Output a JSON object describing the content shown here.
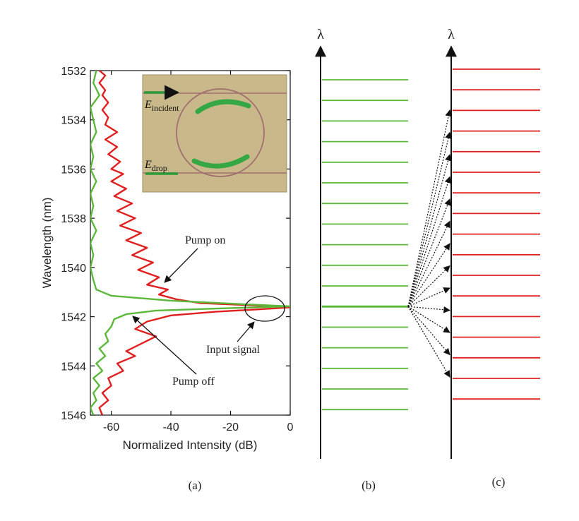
{
  "chart_data": [
    {
      "type": "line",
      "panel_label": "(a)",
      "xlabel": "Normalized Intensity (dB)",
      "ylabel": "Wavelength (nm)",
      "xlim": [
        -67,
        0
      ],
      "ylim": [
        1532,
        1546
      ],
      "x_ticks": [
        -60,
        -40,
        -20,
        0
      ],
      "y_ticks": [
        1532,
        1534,
        1536,
        1538,
        1540,
        1542,
        1544,
        1546
      ],
      "x_tick_labels": [
        "-60",
        "-40",
        "-20",
        "0"
      ],
      "y_tick_labels": [
        "1532",
        "1534",
        "1536",
        "1538",
        "1540",
        "1542",
        "1544",
        "1546"
      ],
      "y_inverted": true,
      "series": [
        {
          "color": "#e02020",
          "points": [
            [
              -64,
              1532.0
            ],
            [
              -62,
              1532.2
            ],
            [
              -64,
              1532.5
            ],
            [
              -62,
              1532.8
            ],
            [
              -63,
              1533.0
            ],
            [
              -61,
              1533.3
            ],
            [
              -63,
              1533.6
            ],
            [
              -61,
              1533.9
            ],
            [
              -62,
              1534.2
            ],
            [
              -58,
              1534.5
            ],
            [
              -62,
              1534.8
            ],
            [
              -58,
              1535.1
            ],
            [
              -61,
              1535.4
            ],
            [
              -57,
              1535.7
            ],
            [
              -60,
              1536.0
            ],
            [
              -56,
              1536.2
            ],
            [
              -60,
              1536.5
            ],
            [
              -55,
              1536.8
            ],
            [
              -59,
              1537.1
            ],
            [
              -53,
              1537.4
            ],
            [
              -58,
              1537.7
            ],
            [
              -52,
              1538.0
            ],
            [
              -57,
              1538.3
            ],
            [
              -50,
              1538.6
            ],
            [
              -55,
              1538.9
            ],
            [
              -48,
              1539.2
            ],
            [
              -53,
              1539.5
            ],
            [
              -46,
              1539.8
            ],
            [
              -51,
              1540.1
            ],
            [
              -44,
              1540.4
            ],
            [
              -48,
              1540.7
            ],
            [
              -41,
              1540.9
            ],
            [
              -44,
              1541.1
            ],
            [
              -38,
              1541.3
            ],
            [
              -30,
              1541.45
            ],
            [
              -10,
              1541.55
            ],
            [
              0,
              1541.62
            ],
            [
              -10,
              1541.7
            ],
            [
              -25,
              1541.8
            ],
            [
              -40,
              1541.95
            ],
            [
              -48,
              1542.2
            ],
            [
              -52,
              1542.5
            ],
            [
              -45,
              1542.8
            ],
            [
              -50,
              1543.1
            ],
            [
              -55,
              1543.4
            ],
            [
              -52,
              1543.6
            ],
            [
              -58,
              1543.9
            ],
            [
              -56,
              1544.2
            ],
            [
              -61,
              1544.5
            ],
            [
              -60,
              1544.8
            ],
            [
              -63,
              1545.1
            ],
            [
              -61,
              1545.4
            ],
            [
              -64,
              1545.7
            ],
            [
              -63,
              1546.0
            ]
          ]
        },
        {
          "color": "#5cb83a",
          "points": [
            [
              -65,
              1532.0
            ],
            [
              -66,
              1532.5
            ],
            [
              -64,
              1533.0
            ],
            [
              -67,
              1533.5
            ],
            [
              -66,
              1534.0
            ],
            [
              -65,
              1534.5
            ],
            [
              -67,
              1535.0
            ],
            [
              -66,
              1535.5
            ],
            [
              -67,
              1536.0
            ],
            [
              -65,
              1536.5
            ],
            [
              -67,
              1537.0
            ],
            [
              -66,
              1537.5
            ],
            [
              -67,
              1538.0
            ],
            [
              -65,
              1538.5
            ],
            [
              -67,
              1539.0
            ],
            [
              -66,
              1539.5
            ],
            [
              -67,
              1540.0
            ],
            [
              -66,
              1540.5
            ],
            [
              -65,
              1540.9
            ],
            [
              -60,
              1541.15
            ],
            [
              -40,
              1541.35
            ],
            [
              -15,
              1541.5
            ],
            [
              0,
              1541.58
            ],
            [
              -20,
              1541.65
            ],
            [
              -45,
              1541.75
            ],
            [
              -55,
              1541.9
            ],
            [
              -59,
              1542.1
            ],
            [
              -60,
              1542.4
            ],
            [
              -62,
              1542.7
            ],
            [
              -61,
              1543.0
            ],
            [
              -64,
              1543.3
            ],
            [
              -62,
              1543.6
            ],
            [
              -65,
              1543.9
            ],
            [
              -63,
              1544.2
            ],
            [
              -66,
              1544.5
            ],
            [
              -64,
              1544.8
            ],
            [
              -66,
              1545.1
            ],
            [
              -65,
              1545.4
            ],
            [
              -67,
              1545.7
            ],
            [
              -66,
              1546.0
            ]
          ]
        }
      ],
      "annotations": [
        {
          "text": "Pump on",
          "target": [
            -44,
            1540.5
          ]
        },
        {
          "text": "Pump off",
          "target": [
            -60,
            1542.1
          ]
        },
        {
          "text": "Input signal",
          "target": [
            -15,
            1542.4
          ]
        }
      ],
      "inset": {
        "labels": [
          {
            "main": "E",
            "sub": "incident"
          },
          {
            "main": "E",
            "sub": "drop"
          }
        ]
      }
    },
    {
      "type": "diagram",
      "panel_label": "(b)",
      "axis_symbol": "λ",
      "line_color": "#5cb83a",
      "line_count": 17,
      "signal_index": 11
    },
    {
      "type": "diagram",
      "panel_label": "(c)",
      "axis_symbol": "λ",
      "line_color": "#e02020",
      "line_count": 17,
      "arrow_count": 13
    }
  ],
  "colors": {
    "pump_on": "#e02020",
    "pump_off": "#5cb83a",
    "inset_bg": "#c9b98a",
    "inset_arrow": "#2a9a3a",
    "axis": "#111111",
    "text": "#222222"
  }
}
